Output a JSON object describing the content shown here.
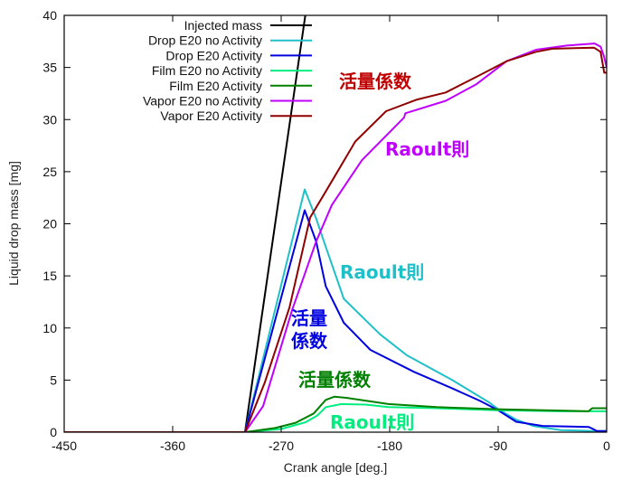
{
  "chart_data": {
    "type": "line",
    "title": "",
    "xlabel": "Crank angle [deg.]",
    "ylabel": "Liquid drop mass [mg]",
    "xlim": [
      -450,
      0
    ],
    "ylim": [
      0,
      40
    ],
    "xticks": [
      -450,
      -360,
      -270,
      -180,
      -90,
      0
    ],
    "yticks": [
      0,
      5,
      10,
      15,
      20,
      25,
      30,
      35,
      40
    ],
    "grid": false,
    "legend_position": "top-left",
    "series": [
      {
        "name": "Injected mass",
        "color": "#000000",
        "x": [
          -450,
          -300,
          -250
        ],
        "y": [
          0,
          0,
          40
        ]
      },
      {
        "name": "Drop E20 no Activity",
        "color": "#20c0c8",
        "x": [
          -450,
          -300,
          -250.5,
          -241,
          -233,
          -218,
          -188,
          -166,
          -128,
          -98,
          -90,
          -75,
          -61,
          -38,
          -10,
          0
        ],
        "y": [
          0,
          0,
          23.3,
          20.5,
          17.8,
          12.8,
          9.4,
          7.4,
          5.0,
          2.9,
          2.2,
          1.2,
          0.6,
          0.2,
          0.1,
          0.1
        ]
      },
      {
        "name": "Drop E20 Activity",
        "color": "#0000e0",
        "x": [
          -450,
          -300,
          -250.5,
          -241,
          -233,
          -218,
          -196,
          -160,
          -128,
          -105,
          -90,
          -75,
          -53,
          -15,
          -12,
          -8,
          0
        ],
        "y": [
          0,
          0,
          21.3,
          18.3,
          14.0,
          10.5,
          7.9,
          5.8,
          4.2,
          3.0,
          2.1,
          1.0,
          0.6,
          0.5,
          0.35,
          0.1,
          0.1
        ]
      },
      {
        "name": "Film E20 no Activity",
        "color": "#00ee80",
        "x": [
          -450,
          -300,
          -270,
          -250,
          -240,
          -233,
          -220,
          -200,
          -181,
          -141,
          -91,
          -40,
          0
        ],
        "y": [
          0,
          0,
          0.3,
          0.95,
          1.6,
          2.4,
          2.7,
          2.65,
          2.4,
          2.3,
          2.1,
          2.0,
          2.0
        ]
      },
      {
        "name": "Film E20 Activity",
        "color": "#008000",
        "x": [
          -450,
          -300,
          -275,
          -258,
          -243,
          -233,
          -226,
          -216,
          -181,
          -141,
          -91,
          -15,
          -12,
          0
        ],
        "y": [
          0,
          0,
          0.4,
          0.9,
          1.8,
          3.1,
          3.4,
          3.3,
          2.7,
          2.4,
          2.2,
          2.0,
          2.3,
          2.3
        ]
      },
      {
        "name": "Vapor E20 no Activity",
        "color": "#c000ff",
        "x": [
          -450,
          -300,
          -285,
          -261,
          -241,
          -228,
          -203,
          -168,
          -167,
          -133.5,
          -108,
          -83,
          -58.5,
          -33,
          -10,
          -5,
          -2,
          0
        ],
        "y": [
          0,
          0,
          2.5,
          11.7,
          18.3,
          21.8,
          26.1,
          30.2,
          30.6,
          31.8,
          33.4,
          35.6,
          36.7,
          37.1,
          37.3,
          37.0,
          36.0,
          35.0
        ]
      },
      {
        "name": "Vapor E20 Activity",
        "color": "#900000",
        "x": [
          -450,
          -300,
          -283.5,
          -263,
          -246,
          -233,
          -208.5,
          -183,
          -158,
          -133.5,
          -108,
          -83,
          -58.5,
          -45,
          -10.5,
          -5,
          -2,
          0
        ],
        "y": [
          0,
          0,
          4.8,
          12.0,
          20.6,
          23.1,
          27.9,
          30.8,
          31.9,
          32.6,
          34.1,
          35.6,
          36.5,
          36.8,
          36.9,
          36.5,
          34.5,
          34.5
        ]
      }
    ],
    "annotations": [
      {
        "text": "活量係数",
        "color": "#c00000"
      },
      {
        "text": "Raoult則",
        "color": "#c000ff"
      },
      {
        "text": "Raoult則",
        "color": "#20c0c8"
      },
      {
        "text": "活量\n係数",
        "color": "#0000e0"
      },
      {
        "text": "活量係数",
        "color": "#008000"
      },
      {
        "text": "Raoult則",
        "color": "#00ee80"
      }
    ]
  }
}
